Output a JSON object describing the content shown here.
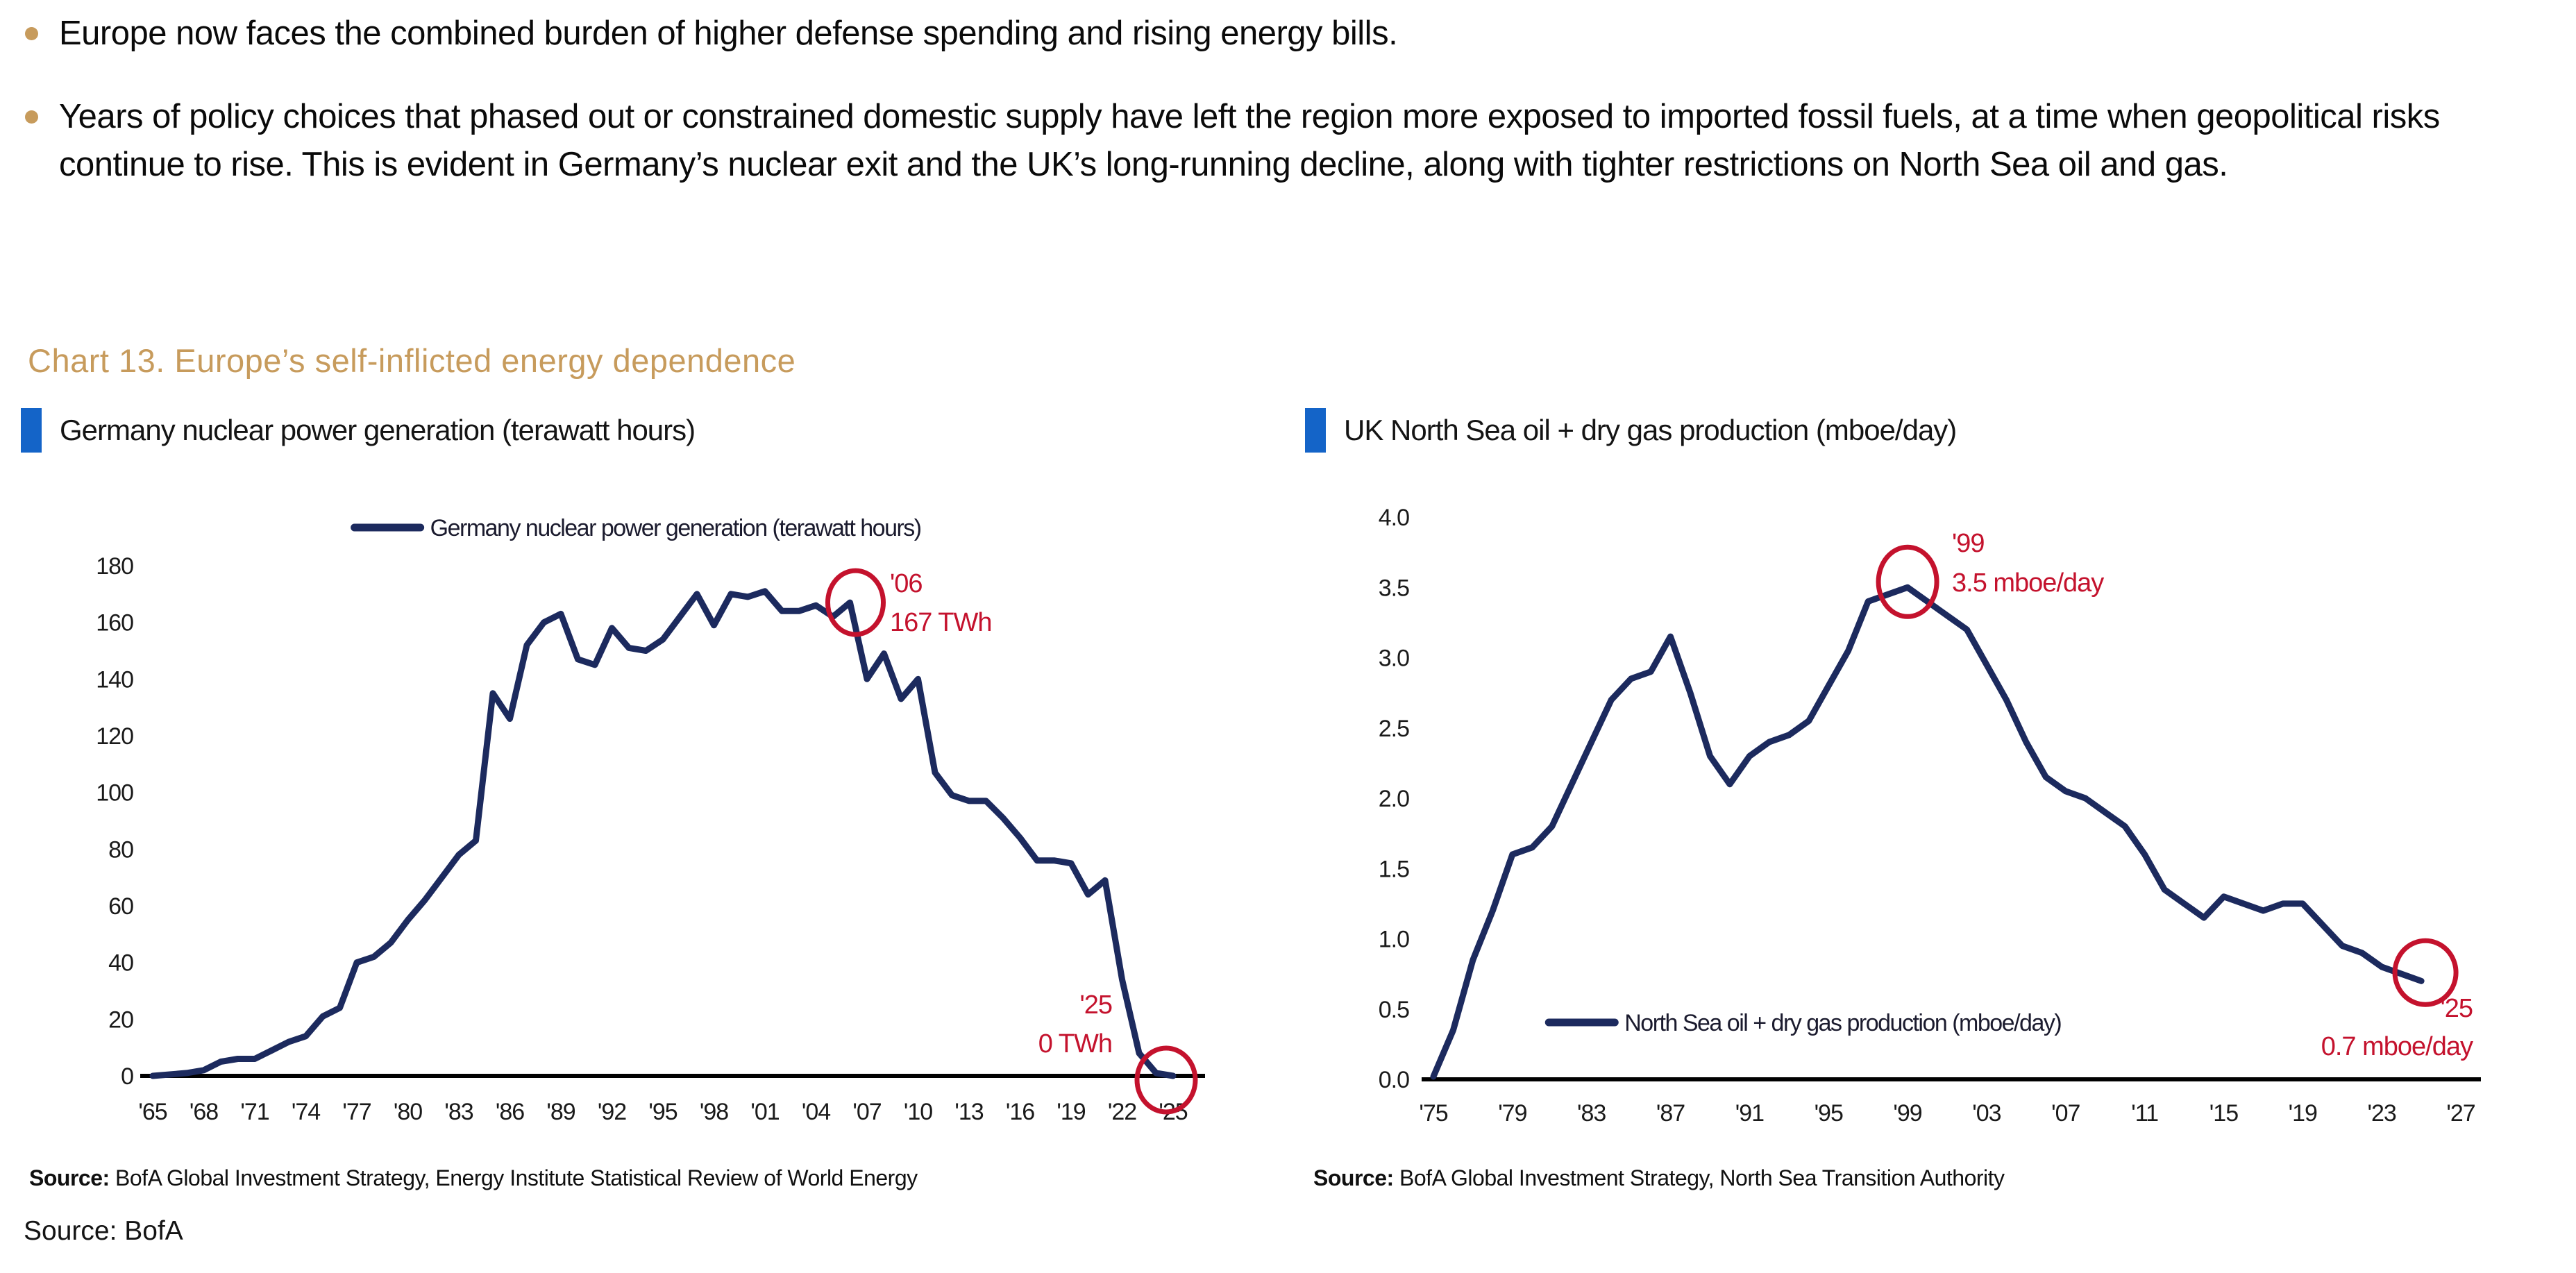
{
  "bullets": [
    {
      "text": "Europe now faces the combined burden of higher defense spending and rising energy bills."
    },
    {
      "text": "Years of policy choices that phased out or constrained domestic supply have left the region more exposed to imported fossil fuels, at a time when geopolitical risks continue to rise. This is evident in Germany’s nuclear exit and the UK’s long-running decline, along with tighter restrictions on North Sea oil and gas."
    }
  ],
  "heading": "Chart 13. Europe’s self-inflicted energy dependence",
  "footer": {
    "source_text": "Source: BofA"
  },
  "colors": {
    "navy": "#1c2a5e",
    "red": "#c4122d",
    "gold": "#c79b5c",
    "marker_blue": "#1464c8",
    "axis_black": "#000000"
  },
  "chart_data": [
    {
      "type": "line",
      "title": "Germany nuclear power generation (terawatt hours)",
      "legend": "Germany nuclear power generation (terawatt hours)",
      "legend_position": "top-center",
      "grid": false,
      "ylim": [
        0,
        180
      ],
      "y_ticks": [
        {
          "v": 0,
          "label": "0"
        },
        {
          "v": 20,
          "label": "20"
        },
        {
          "v": 40,
          "label": "40"
        },
        {
          "v": 60,
          "label": "60"
        },
        {
          "v": 80,
          "label": "80"
        },
        {
          "v": 100,
          "label": "100"
        },
        {
          "v": 120,
          "label": "120"
        },
        {
          "v": 140,
          "label": "140"
        },
        {
          "v": 160,
          "label": "160"
        },
        {
          "v": 180,
          "label": "180"
        }
      ],
      "x_axis_range": [
        1965,
        2025
      ],
      "x_ticks": [
        {
          "year": 1965,
          "label": "'65"
        },
        {
          "year": 1968,
          "label": "'68"
        },
        {
          "year": 1971,
          "label": "'71"
        },
        {
          "year": 1974,
          "label": "'74"
        },
        {
          "year": 1977,
          "label": "'77"
        },
        {
          "year": 1980,
          "label": "'80"
        },
        {
          "year": 1983,
          "label": "'83"
        },
        {
          "year": 1986,
          "label": "'86"
        },
        {
          "year": 1989,
          "label": "'89"
        },
        {
          "year": 1992,
          "label": "'92"
        },
        {
          "year": 1995,
          "label": "'95"
        },
        {
          "year": 1998,
          "label": "'98"
        },
        {
          "year": 2001,
          "label": "'01"
        },
        {
          "year": 2004,
          "label": "'04"
        },
        {
          "year": 2007,
          "label": "'07"
        },
        {
          "year": 2010,
          "label": "'10"
        },
        {
          "year": 2013,
          "label": "'13"
        },
        {
          "year": 2016,
          "label": "'16"
        },
        {
          "year": 2019,
          "label": "'19"
        },
        {
          "year": 2022,
          "label": "'22"
        },
        {
          "year": 2025,
          "label": "'25"
        }
      ],
      "series": [
        {
          "name": "Germany nuclear power generation (terawatt hours)",
          "x_start": 1965,
          "values": [
            0,
            0.5,
            1,
            2,
            5,
            6,
            6,
            9,
            12,
            14,
            21,
            24,
            40,
            42,
            47,
            55,
            62,
            70,
            78,
            83,
            135,
            126,
            152,
            160,
            163,
            147,
            145,
            158,
            151,
            150,
            154,
            162,
            170,
            159,
            170,
            169,
            171,
            164,
            164,
            166,
            162,
            167,
            140,
            149,
            133,
            140,
            107,
            99,
            97,
            97,
            91,
            84,
            76,
            76,
            75,
            64,
            69,
            34,
            8,
            1,
            0
          ]
        }
      ],
      "annotations": [
        {
          "year": 2006,
          "value": 167,
          "lines": [
            "'06",
            "167 TWh"
          ]
        },
        {
          "year": 2025,
          "value": 0,
          "lines": [
            "'25",
            "0 TWh"
          ]
        }
      ],
      "source_label": "Source:",
      "source_text": " BofA Global Investment Strategy, Energy Institute Statistical Review of World Energy"
    },
    {
      "type": "line",
      "title": "UK North Sea oil + dry gas production (mboe/day)",
      "legend": "North Sea oil + dry gas production (mboe/day)",
      "legend_position": "inside-bottom",
      "grid": false,
      "ylim": [
        0,
        4.0
      ],
      "y_ticks": [
        {
          "v": 0,
          "label": "0.0"
        },
        {
          "v": 0.5,
          "label": "0.5"
        },
        {
          "v": 1.0,
          "label": "1.0"
        },
        {
          "v": 1.5,
          "label": "1.5"
        },
        {
          "v": 2.0,
          "label": "2.0"
        },
        {
          "v": 2.5,
          "label": "2.5"
        },
        {
          "v": 3.0,
          "label": "3.0"
        },
        {
          "v": 3.5,
          "label": "3.5"
        },
        {
          "v": 4.0,
          "label": "4.0"
        }
      ],
      "x_axis_range": [
        1975,
        2027
      ],
      "x_ticks": [
        {
          "year": 1975,
          "label": "'75"
        },
        {
          "year": 1979,
          "label": "'79"
        },
        {
          "year": 1983,
          "label": "'83"
        },
        {
          "year": 1987,
          "label": "'87"
        },
        {
          "year": 1991,
          "label": "'91"
        },
        {
          "year": 1995,
          "label": "'95"
        },
        {
          "year": 1999,
          "label": "'99"
        },
        {
          "year": 2003,
          "label": "'03"
        },
        {
          "year": 2007,
          "label": "'07"
        },
        {
          "year": 2011,
          "label": "'11"
        },
        {
          "year": 2015,
          "label": "'15"
        },
        {
          "year": 2019,
          "label": "'19"
        },
        {
          "year": 2023,
          "label": "'23"
        },
        {
          "year": 2027,
          "label": "'27"
        }
      ],
      "series": [
        {
          "name": "North Sea oil + dry gas production (mboe/day)",
          "x_start": 1975,
          "values": [
            0.02,
            0.35,
            0.85,
            1.2,
            1.6,
            1.65,
            1.8,
            2.1,
            2.4,
            2.7,
            2.85,
            2.9,
            3.15,
            2.75,
            2.3,
            2.1,
            2.3,
            2.4,
            2.45,
            2.55,
            2.8,
            3.05,
            3.4,
            3.45,
            3.5,
            3.4,
            3.3,
            3.2,
            2.95,
            2.7,
            2.4,
            2.15,
            2.05,
            2.0,
            1.9,
            1.8,
            1.6,
            1.35,
            1.25,
            1.15,
            1.3,
            1.25,
            1.2,
            1.25,
            1.25,
            1.1,
            0.95,
            0.9,
            0.8,
            0.75,
            0.7
          ]
        }
      ],
      "annotations": [
        {
          "year": 1999,
          "value": 3.5,
          "lines": [
            "'99",
            "3.5 mboe/day"
          ]
        },
        {
          "year": 2025,
          "value": 0.7,
          "lines": [
            "'25",
            "0.7 mboe/day"
          ]
        }
      ],
      "source_label": "Source:",
      "source_text": " BofA Global Investment Strategy, North Sea Transition Authority"
    }
  ]
}
